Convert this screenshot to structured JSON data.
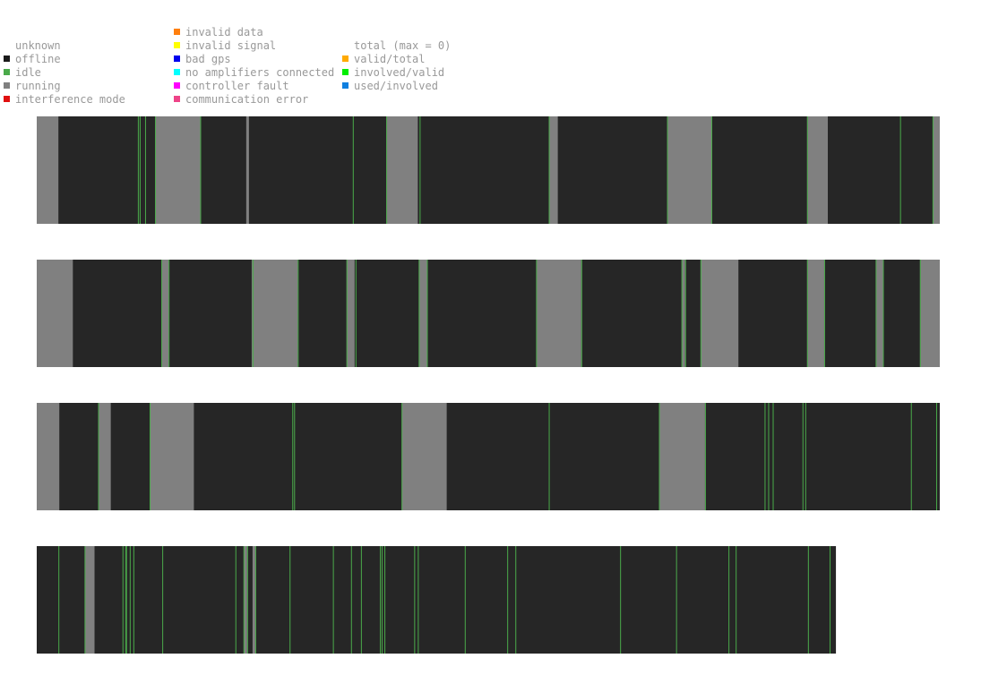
{
  "legend": {
    "columns": [
      {
        "items": [
          {
            "label": "unknown",
            "color": null
          },
          {
            "label": "offline",
            "color": "#1a1a1a"
          },
          {
            "label": "idle",
            "color": "#4aaa4a"
          },
          {
            "label": "running",
            "color": "#808080"
          },
          {
            "label": "interference mode",
            "color": "#e01010"
          }
        ]
      },
      {
        "items": [
          {
            "label": "invalid data",
            "color": "#ff7f0e"
          },
          {
            "label": "invalid signal",
            "color": "#ffff00"
          },
          {
            "label": "bad gps",
            "color": "#0000ee"
          },
          {
            "label": "no amplifiers connected",
            "color": "#00ffff"
          },
          {
            "label": "controller fault",
            "color": "#ff00ff"
          },
          {
            "label": "communication error",
            "color": "#ee4488"
          }
        ]
      },
      {
        "items": [
          {
            "label": "total (max = 0)",
            "color": null
          },
          {
            "label": "valid/total",
            "color": "#ffaa00"
          },
          {
            "label": "involved/valid",
            "color": "#00ee00"
          },
          {
            "label": "used/involved",
            "color": "#1080e0"
          }
        ]
      }
    ]
  },
  "chart_data": {
    "type": "timeline",
    "title": "",
    "x_unit": "fraction of row duration",
    "state_colors": {
      "offline": "#262626",
      "running": "#808080",
      "idle": "#4aaa4a"
    },
    "rows": [
      {
        "length": 1.0,
        "running": [
          [
            0.0,
            0.024
          ],
          [
            0.131,
            0.181
          ],
          [
            0.232,
            0.235
          ],
          [
            0.387,
            0.422
          ],
          [
            0.567,
            0.577
          ],
          [
            0.698,
            0.748
          ],
          [
            0.853,
            0.876
          ],
          [
            0.992,
            1.0
          ]
        ],
        "idle": [
          0.112,
          0.114,
          0.12,
          0.131,
          0.181,
          0.35,
          0.387,
          0.424,
          0.567,
          0.698,
          0.747,
          0.853,
          0.956,
          0.992
        ]
      },
      {
        "length": 1.0,
        "running": [
          [
            0.0,
            0.04
          ],
          [
            0.138,
            0.146
          ],
          [
            0.238,
            0.289
          ],
          [
            0.343,
            0.352
          ],
          [
            0.423,
            0.433
          ],
          [
            0.553,
            0.603
          ],
          [
            0.714,
            0.718
          ],
          [
            0.735,
            0.777
          ],
          [
            0.853,
            0.872
          ],
          [
            0.929,
            0.937
          ],
          [
            0.978,
            1.0
          ]
        ],
        "idle": [
          0.138,
          0.146,
          0.239,
          0.289,
          0.343,
          0.353,
          0.423,
          0.432,
          0.553,
          0.603,
          0.714,
          0.718,
          0.735,
          0.853,
          0.872,
          0.929,
          0.937,
          0.978
        ]
      },
      {
        "length": 1.0,
        "running": [
          [
            0.0,
            0.025
          ],
          [
            0.068,
            0.082
          ],
          [
            0.125,
            0.174
          ],
          [
            0.404,
            0.454
          ],
          [
            0.69,
            0.74
          ]
        ],
        "idle": [
          0.068,
          0.125,
          0.283,
          0.285,
          0.404,
          0.567,
          0.689,
          0.74,
          0.806,
          0.81,
          0.815,
          0.848,
          0.851,
          0.968,
          0.996
        ]
      },
      {
        "length": 0.885,
        "running": [
          [
            0.053,
            0.064
          ],
          [
            0.229,
            0.233
          ],
          [
            0.239,
            0.242
          ]
        ],
        "idle": [
          0.024,
          0.053,
          0.095,
          0.098,
          0.099,
          0.103,
          0.107,
          0.139,
          0.22,
          0.229,
          0.233,
          0.242,
          0.28,
          0.328,
          0.348,
          0.359,
          0.38,
          0.382,
          0.385,
          0.418,
          0.422,
          0.474,
          0.521,
          0.53,
          0.646,
          0.708,
          0.766,
          0.774,
          0.854,
          0.878
        ]
      }
    ]
  }
}
